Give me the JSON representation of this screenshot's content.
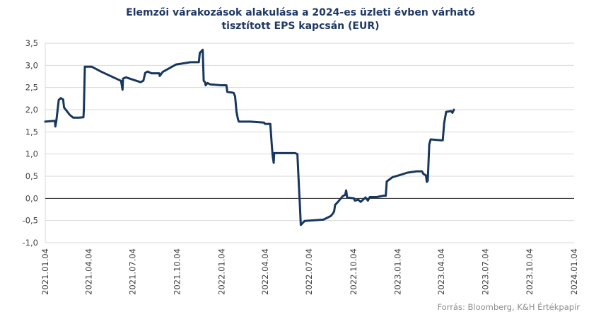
{
  "chart_data": {
    "type": "line",
    "title_lines": [
      "Elemzői várakozások alakulása a 2024-es üzleti évben várható",
      "tisztított EPS kapcsán (EUR)"
    ],
    "xlabel": "",
    "ylabel": "",
    "y_ticks": [
      "3,5",
      "3,0",
      "2,5",
      "2,0",
      "1,5",
      "1,0",
      "0,5",
      "0,0",
      "-0,5",
      "-1,0"
    ],
    "y_tick_values": [
      3.5,
      3.0,
      2.5,
      2.0,
      1.5,
      1.0,
      0.5,
      0.0,
      -0.5,
      -1.0
    ],
    "ylim": [
      -1.0,
      3.5
    ],
    "x_ticks": [
      "2021.01.04",
      "2021.04.04",
      "2021.07.04",
      "2021.10.04",
      "2022.01.04",
      "2022.04.04",
      "2022.07.04",
      "2022.10.04",
      "2023.01.04",
      "2023.04.04",
      "2023.07.04",
      "2023.10.04",
      "2024.01.04"
    ],
    "xlim": [
      "2021-01-04",
      "2024-01-04"
    ],
    "grid": true,
    "line_color": "#17375e",
    "series": [
      {
        "points": [
          [
            "2021-01-04",
            1.73
          ],
          [
            "2021-01-24",
            1.75
          ],
          [
            "2021-01-25",
            1.62
          ],
          [
            "2021-01-27",
            1.75
          ],
          [
            "2021-02-01",
            2.22
          ],
          [
            "2021-02-05",
            2.26
          ],
          [
            "2021-02-10",
            2.23
          ],
          [
            "2021-02-12",
            2.05
          ],
          [
            "2021-02-24",
            1.88
          ],
          [
            "2021-03-03",
            1.82
          ],
          [
            "2021-03-15",
            1.82
          ],
          [
            "2021-03-24",
            1.83
          ],
          [
            "2021-03-25",
            2.0
          ],
          [
            "2021-03-27",
            2.97
          ],
          [
            "2021-04-10",
            2.97
          ],
          [
            "2021-05-01",
            2.85
          ],
          [
            "2021-06-10",
            2.65
          ],
          [
            "2021-06-13",
            2.45
          ],
          [
            "2021-06-14",
            2.7
          ],
          [
            "2021-06-20",
            2.73
          ],
          [
            "2021-07-20",
            2.62
          ],
          [
            "2021-07-26",
            2.65
          ],
          [
            "2021-07-30",
            2.83
          ],
          [
            "2021-08-04",
            2.86
          ],
          [
            "2021-08-12",
            2.82
          ],
          [
            "2021-08-28",
            2.82
          ],
          [
            "2021-08-29",
            2.76
          ],
          [
            "2021-09-04",
            2.85
          ],
          [
            "2021-10-02",
            3.02
          ],
          [
            "2021-11-01",
            3.07
          ],
          [
            "2021-11-18",
            3.07
          ],
          [
            "2021-11-20",
            3.28
          ],
          [
            "2021-11-26",
            3.35
          ],
          [
            "2021-11-28",
            2.65
          ],
          [
            "2021-12-01",
            2.62
          ],
          [
            "2021-12-02",
            2.55
          ],
          [
            "2021-12-06",
            2.6
          ],
          [
            "2021-12-12",
            2.57
          ],
          [
            "2022-01-03",
            2.55
          ],
          [
            "2022-01-14",
            2.55
          ],
          [
            "2022-01-16",
            2.4
          ],
          [
            "2022-01-29",
            2.38
          ],
          [
            "2022-02-01",
            2.3
          ],
          [
            "2022-02-04",
            1.95
          ],
          [
            "2022-02-07",
            1.78
          ],
          [
            "2022-02-09",
            1.73
          ],
          [
            "2022-03-05",
            1.73
          ],
          [
            "2022-04-02",
            1.71
          ],
          [
            "2022-04-04",
            1.68
          ],
          [
            "2022-04-15",
            1.68
          ],
          [
            "2022-04-18",
            1.2
          ],
          [
            "2022-04-20",
            0.95
          ],
          [
            "2022-04-22",
            0.8
          ],
          [
            "2022-04-23",
            1.02
          ],
          [
            "2022-06-05",
            1.02
          ],
          [
            "2022-06-10",
            1.0
          ],
          [
            "2022-06-14",
            0.1
          ],
          [
            "2022-06-15",
            -0.1
          ],
          [
            "2022-06-17",
            -0.6
          ],
          [
            "2022-06-25",
            -0.51
          ],
          [
            "2022-08-03",
            -0.48
          ],
          [
            "2022-08-18",
            -0.4
          ],
          [
            "2022-08-22",
            -0.35
          ],
          [
            "2022-08-25",
            -0.3
          ],
          [
            "2022-08-27",
            -0.15
          ],
          [
            "2022-09-02",
            -0.08
          ],
          [
            "2022-09-12",
            0.05
          ],
          [
            "2022-09-17",
            0.08
          ],
          [
            "2022-09-19",
            0.18
          ],
          [
            "2022-09-21",
            0.02
          ],
          [
            "2022-10-05",
            0.0
          ],
          [
            "2022-10-07",
            -0.05
          ],
          [
            "2022-10-14",
            -0.03
          ],
          [
            "2022-10-19",
            -0.08
          ],
          [
            "2022-10-29",
            0.02
          ],
          [
            "2022-11-03",
            -0.05
          ],
          [
            "2022-11-07",
            0.03
          ],
          [
            "2022-11-21",
            0.03
          ],
          [
            "2022-12-05",
            0.06
          ],
          [
            "2022-12-10",
            0.06
          ],
          [
            "2022-12-12",
            0.38
          ],
          [
            "2022-12-24",
            0.48
          ],
          [
            "2023-01-03",
            0.51
          ],
          [
            "2023-01-24",
            0.58
          ],
          [
            "2023-02-12",
            0.61
          ],
          [
            "2023-02-23",
            0.61
          ],
          [
            "2023-02-26",
            0.55
          ],
          [
            "2023-03-03",
            0.52
          ],
          [
            "2023-03-05",
            0.37
          ],
          [
            "2023-03-07",
            0.4
          ],
          [
            "2023-03-10",
            1.22
          ],
          [
            "2023-03-13",
            1.33
          ],
          [
            "2023-04-03",
            1.31
          ],
          [
            "2023-04-07",
            1.31
          ],
          [
            "2023-04-10",
            1.7
          ],
          [
            "2023-04-14",
            1.95
          ],
          [
            "2023-04-24",
            1.97
          ],
          [
            "2023-04-27",
            1.93
          ],
          [
            "2023-04-30",
            2.0
          ]
        ]
      }
    ],
    "source": "Forrás: Bloomberg, K&H Értékpapír"
  }
}
